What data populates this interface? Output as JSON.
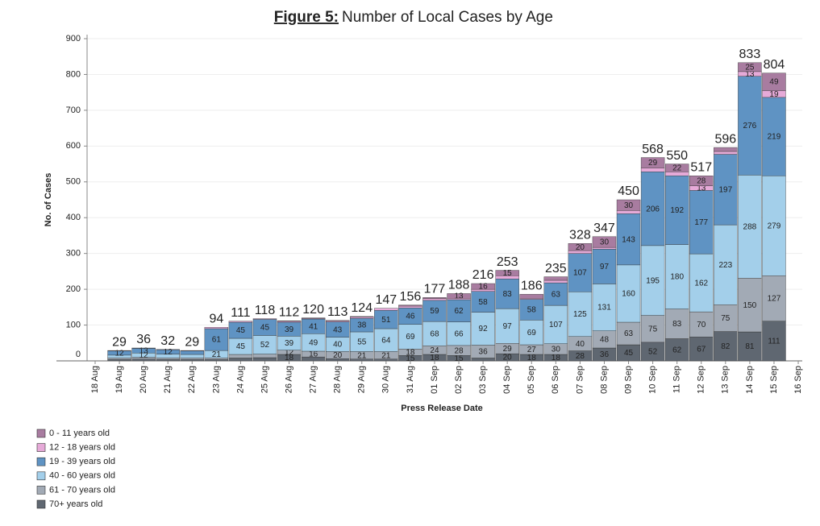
{
  "chart_data": {
    "type": "stacked_bar",
    "title_prefix": "Figure 5:",
    "title": "Number of Local Cases by Age",
    "x_label": "Press Release Date",
    "y_label": "No. of Cases",
    "categories": [
      "18 Aug",
      "19 Aug",
      "20 Aug",
      "21 Aug",
      "22 Aug",
      "23 Aug",
      "24 Aug",
      "25 Aug",
      "26 Aug",
      "27 Aug",
      "28 Aug",
      "29 Aug",
      "30 Aug",
      "31 Aug",
      "01 Sep",
      "02 Sep",
      "03 Sep",
      "04 Sep",
      "05 Sep",
      "06 Sep",
      "07 Sep",
      "08 Sep",
      "09 Sep",
      "10 Sep",
      "11 Sep",
      "12 Sep",
      "13 Sep",
      "14 Sep",
      "15 Sep",
      "16 Sep"
    ],
    "series": [
      {
        "name": "0 - 11 years old",
        "color": "#a87ca0",
        "values": [
          null,
          1,
          1,
          1,
          1,
          0,
          0,
          0,
          1,
          1,
          1,
          2,
          0,
          3,
          3,
          13,
          16,
          15,
          11,
          10,
          20,
          30,
          30,
          29,
          22,
          28,
          11,
          25,
          49,
          null
        ]
      },
      {
        "name": "12 - 18 years old",
        "color": "#e6aad8",
        "values": [
          null,
          0,
          0,
          0,
          0,
          4,
          3,
          2,
          3,
          2,
          3,
          3,
          6,
          5,
          5,
          4,
          6,
          9,
          3,
          7,
          8,
          5,
          9,
          11,
          11,
          13,
          8,
          13,
          19,
          null
        ]
      },
      {
        "name": "19 - 39 years old",
        "color": "#5f93c3",
        "values": [
          null,
          12,
          13,
          12,
          10,
          61,
          45,
          45,
          39,
          41,
          43,
          38,
          51,
          46,
          59,
          62,
          58,
          83,
          58,
          63,
          107,
          97,
          143,
          206,
          192,
          177,
          197,
          276,
          219,
          null
        ]
      },
      {
        "name": "40 - 60 years old",
        "color": "#a3cfea",
        "values": [
          null,
          8,
          12,
          11,
          10,
          21,
          45,
          52,
          39,
          49,
          40,
          55,
          64,
          69,
          68,
          66,
          92,
          97,
          69,
          107,
          125,
          131,
          160,
          195,
          180,
          162,
          223,
          288,
          279,
          null
        ]
      },
      {
        "name": "61 - 70 years old",
        "color": "#a2aab5",
        "values": [
          null,
          4,
          5,
          4,
          4,
          4,
          10,
          10,
          12,
          16,
          20,
          21,
          21,
          18,
          24,
          28,
          36,
          29,
          27,
          30,
          40,
          48,
          63,
          75,
          83,
          70,
          75,
          150,
          127,
          null
        ]
      },
      {
        "name": "70+ years old",
        "color": "#5f6771",
        "values": [
          null,
          4,
          5,
          4,
          4,
          4,
          8,
          9,
          18,
          11,
          6,
          5,
          5,
          15,
          18,
          15,
          8,
          20,
          18,
          18,
          28,
          36,
          45,
          52,
          62,
          67,
          82,
          81,
          111,
          null
        ]
      }
    ],
    "totals": [
      null,
      29,
      36,
      32,
      29,
      94,
      111,
      118,
      112,
      120,
      113,
      124,
      147,
      156,
      177,
      188,
      216,
      253,
      186,
      235,
      328,
      347,
      450,
      568,
      550,
      517,
      596,
      833,
      804,
      null
    ],
    "ylim": [
      0,
      900
    ],
    "yticks": [
      0,
      100,
      200,
      300,
      400,
      500,
      600,
      700,
      800,
      900
    ],
    "grid": true,
    "legend": "bottom-left"
  }
}
